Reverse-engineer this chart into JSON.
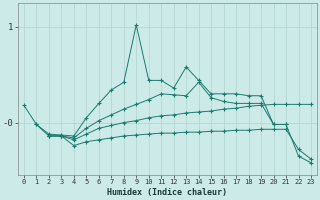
{
  "xlabel": "Humidex (Indice chaleur)",
  "xlim": [
    -0.5,
    23.5
  ],
  "ylim": [
    -0.55,
    1.25
  ],
  "yticks": [
    0.0,
    1.0
  ],
  "ytick_labels": [
    "-0",
    "1"
  ],
  "xticks": [
    0,
    1,
    2,
    3,
    4,
    5,
    6,
    7,
    8,
    9,
    10,
    11,
    12,
    13,
    14,
    15,
    16,
    17,
    18,
    19,
    20,
    21,
    22,
    23
  ],
  "bg_color": "#cceae8",
  "line_color": "#1a7a6e",
  "grid_color": "#b0d4d0",
  "lines": [
    {
      "x": [
        0,
        1,
        2,
        3,
        4,
        5,
        6,
        7,
        8,
        9,
        10,
        11,
        12,
        13,
        14,
        15,
        16,
        17,
        18,
        19,
        20,
        21
      ],
      "y": [
        0.18,
        -0.02,
        -0.12,
        -0.13,
        -0.14,
        0.05,
        0.2,
        0.34,
        0.42,
        1.02,
        0.44,
        0.44,
        0.36,
        0.58,
        0.44,
        0.3,
        0.3,
        0.3,
        0.28,
        0.28,
        -0.02,
        -0.02
      ]
    },
    {
      "x": [
        1,
        2,
        3,
        4,
        5,
        6,
        7,
        8,
        9,
        10,
        11,
        12,
        13,
        14,
        15,
        16,
        17,
        18,
        19,
        20,
        21,
        22,
        23
      ],
      "y": [
        -0.02,
        -0.14,
        -0.14,
        -0.16,
        -0.06,
        0.02,
        0.08,
        0.14,
        0.19,
        0.24,
        0.3,
        0.29,
        0.28,
        0.42,
        0.26,
        0.22,
        0.2,
        0.2,
        0.2,
        -0.02,
        -0.02,
        -0.35,
        -0.42
      ]
    },
    {
      "x": [
        2,
        3,
        4,
        5,
        6,
        7,
        8,
        9,
        10,
        11,
        12,
        13,
        14,
        15,
        16,
        17,
        18,
        19,
        20,
        21,
        22,
        23
      ],
      "y": [
        -0.14,
        -0.14,
        -0.18,
        -0.12,
        -0.06,
        -0.03,
        0.0,
        0.02,
        0.05,
        0.07,
        0.08,
        0.1,
        0.11,
        0.12,
        0.14,
        0.15,
        0.17,
        0.18,
        0.19,
        0.19,
        0.19,
        0.19
      ]
    },
    {
      "x": [
        2,
        3,
        4,
        5,
        6,
        7,
        8,
        9,
        10,
        11,
        12,
        13,
        14,
        15,
        16,
        17,
        18,
        19,
        20,
        21,
        22,
        23
      ],
      "y": [
        -0.14,
        -0.14,
        -0.24,
        -0.2,
        -0.18,
        -0.16,
        -0.14,
        -0.13,
        -0.12,
        -0.11,
        -0.11,
        -0.1,
        -0.1,
        -0.09,
        -0.09,
        -0.08,
        -0.08,
        -0.07,
        -0.07,
        -0.07,
        -0.28,
        -0.38
      ]
    }
  ]
}
